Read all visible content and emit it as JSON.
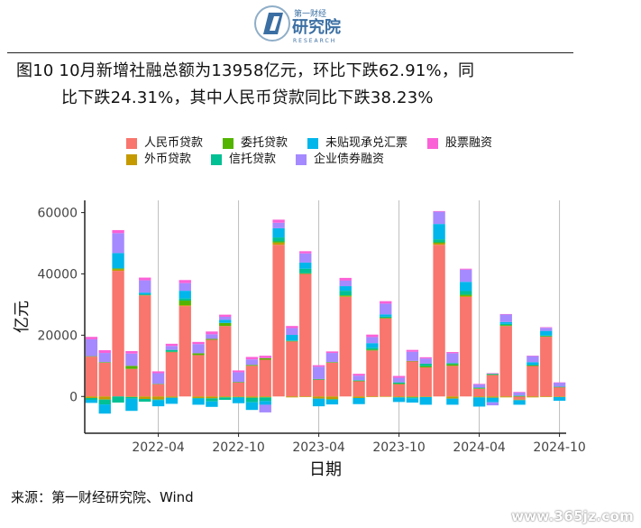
{
  "header": {
    "logo_cn": "第一财经",
    "logo_main": "研究院",
    "logo_en": "RESEARCH"
  },
  "figure": {
    "title_line1": "图10 10月新增社融总额为13958亿元，环比下跌62.91%，同",
    "title_line2": "比下跌24.31%，其中人民币贷款同比下跌38.23%"
  },
  "source": "来源：第一财经研究院、Wind",
  "watermark": "www.365jz.com",
  "chart_data": {
    "type": "bar",
    "stacked": true,
    "xlabel": "日期",
    "ylabel": "亿元",
    "ylim": [
      -12000,
      64000
    ],
    "yticks": [
      0,
      20000,
      40000,
      60000
    ],
    "xticks": [
      "2022-04",
      "2022-10",
      "2023-04",
      "2023-10",
      "2024-04",
      "2024-10"
    ],
    "grid": "vertical lines at x ticks",
    "legend_position": "top",
    "categories": [
      "2021-11",
      "2021-12",
      "2022-01",
      "2022-02",
      "2022-03",
      "2022-04",
      "2022-05",
      "2022-06",
      "2022-07",
      "2022-08",
      "2022-09",
      "2022-10",
      "2022-11",
      "2022-12",
      "2023-01",
      "2023-02",
      "2023-03",
      "2023-04",
      "2023-05",
      "2023-06",
      "2023-07",
      "2023-08",
      "2023-09",
      "2023-10",
      "2023-11",
      "2023-12",
      "2024-01",
      "2024-02",
      "2024-03",
      "2024-04",
      "2024-05",
      "2024-06",
      "2024-07",
      "2024-08",
      "2024-09",
      "2024-10"
    ],
    "series": [
      {
        "name": "人民币贷款",
        "color": "#F8766D",
        "values": [
          13000,
          11000,
          41000,
          9000,
          33000,
          4000,
          14500,
          29500,
          13500,
          18500,
          23000,
          4500,
          10000,
          12000,
          49500,
          18000,
          40000,
          5500,
          11000,
          32500,
          5000,
          15000,
          25500,
          4000,
          11500,
          9500,
          49500,
          10000,
          32500,
          2500,
          7000,
          23000,
          -1000,
          10000,
          19500,
          3000
        ]
      },
      {
        "name": "外币贷款",
        "color": "#C49A00",
        "values": [
          -500,
          -1000,
          500,
          -200,
          -800,
          -1000,
          -400,
          300,
          -500,
          -600,
          -300,
          -200,
          -400,
          -300,
          700,
          -300,
          -200,
          -700,
          -900,
          200,
          -500,
          -200,
          -100,
          -300,
          -300,
          -200,
          500,
          -700,
          300,
          -300,
          -400,
          -300,
          -200,
          -300,
          -200,
          -200
        ]
      },
      {
        "name": "委托贷款",
        "color": "#53B400",
        "values": [
          150,
          200,
          300,
          1000,
          200,
          100,
          100,
          1500,
          600,
          300,
          1000,
          200,
          300,
          500,
          400,
          100,
          200,
          100,
          200,
          300,
          100,
          300,
          200,
          200,
          100,
          400,
          300,
          500,
          400,
          200,
          100,
          300,
          100,
          100,
          200,
          100
        ]
      },
      {
        "name": "信托贷款",
        "color": "#00C094",
        "values": [
          -600,
          -1600,
          -2000,
          -500,
          -900,
          -200,
          600,
          700,
          -200,
          -1000,
          -800,
          -200,
          -1500,
          -1200,
          1300,
          200,
          1500,
          100,
          -200,
          1500,
          200,
          600,
          400,
          400,
          -300,
          800,
          1000,
          400,
          1200,
          200,
          300,
          400,
          200,
          300,
          200,
          100
        ]
      },
      {
        "name": "未贴现承兑汇票",
        "color": "#00B6EB",
        "values": [
          -1000,
          -3000,
          5000,
          -4000,
          700,
          -2000,
          -2000,
          2500,
          -2000,
          -1800,
          1000,
          -1800,
          -2500,
          -1200,
          3000,
          1800,
          2000,
          -2500,
          -1500,
          1500,
          -2000,
          1500,
          700,
          -1500,
          -1400,
          -2500,
          5000,
          -2000,
          3000,
          -3000,
          -1500,
          600,
          -1500,
          800,
          1500,
          -1200
        ]
      },
      {
        "name": "企业债券融资",
        "color": "#A58AFF",
        "values": [
          5500,
          3000,
          6500,
          4000,
          4000,
          3500,
          1300,
          2500,
          3000,
          1500,
          1000,
          3200,
          1800,
          -2500,
          1800,
          2200,
          3000,
          4000,
          3000,
          1800,
          1500,
          2000,
          3500,
          1500,
          3000,
          1700,
          4000,
          3200,
          4000,
          1000,
          -1000,
          2500,
          1000,
          2000,
          1000,
          1300
        ]
      },
      {
        "name": "股票融资",
        "color": "#FB61D7",
        "values": [
          800,
          900,
          1000,
          800,
          900,
          600,
          700,
          1000,
          700,
          900,
          700,
          600,
          800,
          800,
          1000,
          700,
          700,
          500,
          500,
          900,
          600,
          800,
          800,
          600,
          600,
          400,
          200,
          400,
          300,
          200,
          200,
          100,
          200,
          100,
          200,
          100
        ]
      }
    ]
  }
}
